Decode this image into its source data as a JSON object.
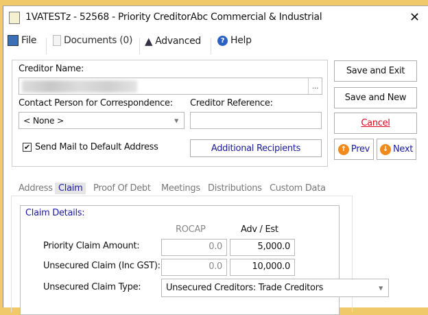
{
  "window": {
    "title": "1VATESTz - 52568 - Priority CreditorAbc Commercial & Industrial"
  },
  "toolbar": {
    "file": "File",
    "documents": "Documents (0)",
    "advanced": "Advanced",
    "help": "Help"
  },
  "form": {
    "creditor_name_label": "Creditor Name:",
    "creditor_name_value": "",
    "browse_label": "...",
    "contact_label": "Contact Person for Correspondence:",
    "contact_value": "< None >",
    "reference_label": "Creditor Reference:",
    "reference_value": "",
    "send_mail_label": "Send Mail to Default Address",
    "send_mail_checked": true,
    "additional_recipients": "Additional Recipients"
  },
  "actions": {
    "save_exit": "Save and Exit",
    "save_new": "Save and New",
    "cancel": "Cancel",
    "prev": "Prev",
    "next": "Next"
  },
  "tabs": [
    {
      "label": "Address"
    },
    {
      "label": "Claim",
      "selected": true
    },
    {
      "label": "Proof Of Debt"
    },
    {
      "label": "Meetings"
    },
    {
      "label": "Distributions"
    },
    {
      "label": "Custom Data"
    }
  ],
  "claim": {
    "group_title": "Claim Details:",
    "col_rocap": "ROCAP",
    "col_adv": "Adv / Est",
    "rows": [
      {
        "label": "Priority Claim Amount:",
        "rocap": "0.0",
        "adv": "5,000.0"
      },
      {
        "label": "Unsecured Claim (Inc GST):",
        "rocap": "0.0",
        "adv": "10,000.0"
      }
    ],
    "type_label": "Unsecured Claim Type:",
    "type_value": "Unsecured Creditors: Trade Creditors"
  },
  "colors": {
    "accent_blue": "#1a1a9e",
    "cancel_red": "#e0001b",
    "orb_orange": "#f08a1c"
  }
}
